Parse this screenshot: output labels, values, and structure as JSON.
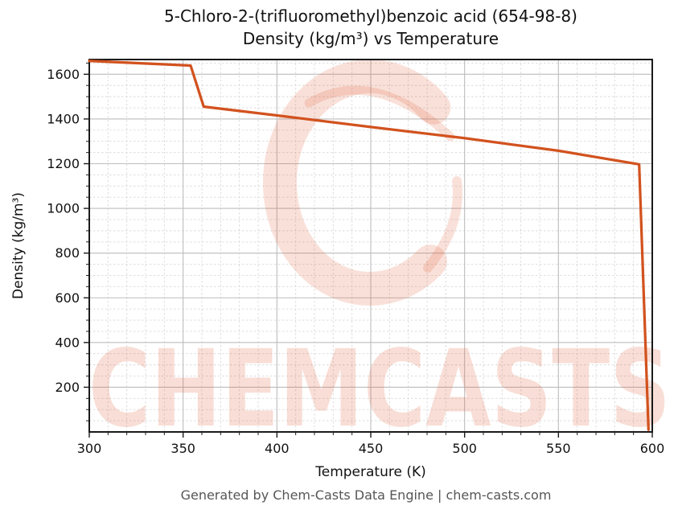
{
  "header": {
    "title_line1": "5-Chloro-2-(trifluoromethyl)benzoic acid (654-98-8)",
    "title_line2": "Density (kg/m³) vs Temperature"
  },
  "footer": {
    "text": "Generated by Chem-Casts Data Engine | chem-casts.com"
  },
  "watermark": {
    "text": "CHEMCASTS",
    "logo": "chemcasts-c-swoosh-logo",
    "color": "#dd5a31",
    "text_opacity": 0.2,
    "logo_opacity": 0.18
  },
  "chart_data": {
    "type": "line",
    "title": "5-Chloro-2-(trifluoromethyl)benzoic acid (654-98-8) — Density (kg/m³) vs Temperature",
    "xlabel": "Temperature (K)",
    "ylabel": "Density (kg/m³)",
    "xlim": [
      300,
      600
    ],
    "ylim": [
      0,
      1666
    ],
    "x_major_ticks": [
      300,
      350,
      400,
      450,
      500,
      550,
      600
    ],
    "x_minor_step": 10,
    "y_major_ticks": [
      200,
      400,
      600,
      800,
      1000,
      1200,
      1400,
      1600
    ],
    "y_minor_step": 50,
    "grid": {
      "major": "solid",
      "minor": "dashed"
    },
    "legend": "none",
    "line_color": "#d2521e",
    "line_width": 3.25,
    "series": [
      {
        "name": "Density",
        "points": [
          [
            300,
            1660
          ],
          [
            354,
            1639
          ],
          [
            361,
            1455
          ],
          [
            400,
            1416
          ],
          [
            450,
            1364
          ],
          [
            500,
            1314
          ],
          [
            550,
            1258
          ],
          [
            593,
            1197
          ],
          [
            598,
            10
          ]
        ]
      }
    ],
    "annotations": {
      "melting_step": "density drops ~1639→1455 kg/m³ near 354–361 K",
      "vaporization_drop": "density drops ~1197→~10 kg/m³ near 593–598 K"
    }
  },
  "colors": {
    "spine": "#1a1a1a",
    "major_grid": "#bdbdbd",
    "minor_grid": "#d9d9d9",
    "tick_label": "#111111",
    "footer_text": "#565656"
  }
}
